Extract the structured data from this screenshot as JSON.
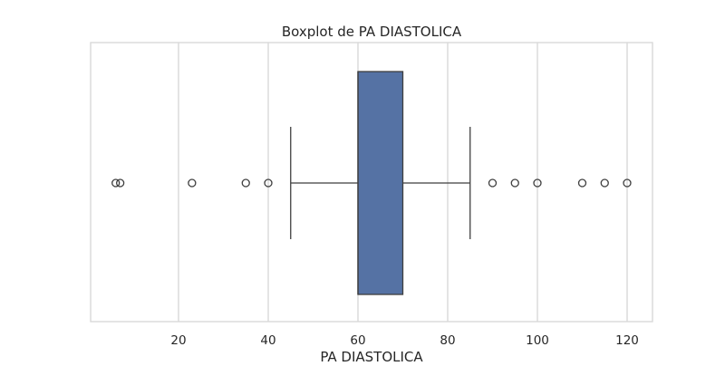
{
  "chart_data": {
    "type": "boxplot",
    "title": "Boxplot de PA DIASTOLICA",
    "xlabel": "PA DIASTOLICA",
    "ylabel": "",
    "orientation": "horizontal",
    "xlim": [
      0,
      125
    ],
    "xticks": [
      20,
      40,
      60,
      80,
      100,
      120
    ],
    "grid": "vertical",
    "box": {
      "whisker_low": 45,
      "q1": 60,
      "median": 60,
      "q3": 70,
      "whisker_high": 85
    },
    "outliers": [
      6,
      7,
      23,
      35,
      40,
      90,
      95,
      100,
      110,
      115,
      120
    ],
    "colors": {
      "box_fill": "#5572a4",
      "box_edge": "#3f3f3f",
      "grid": "#d9d9d9",
      "frame": "#d9d9d9",
      "text": "#262626"
    }
  }
}
